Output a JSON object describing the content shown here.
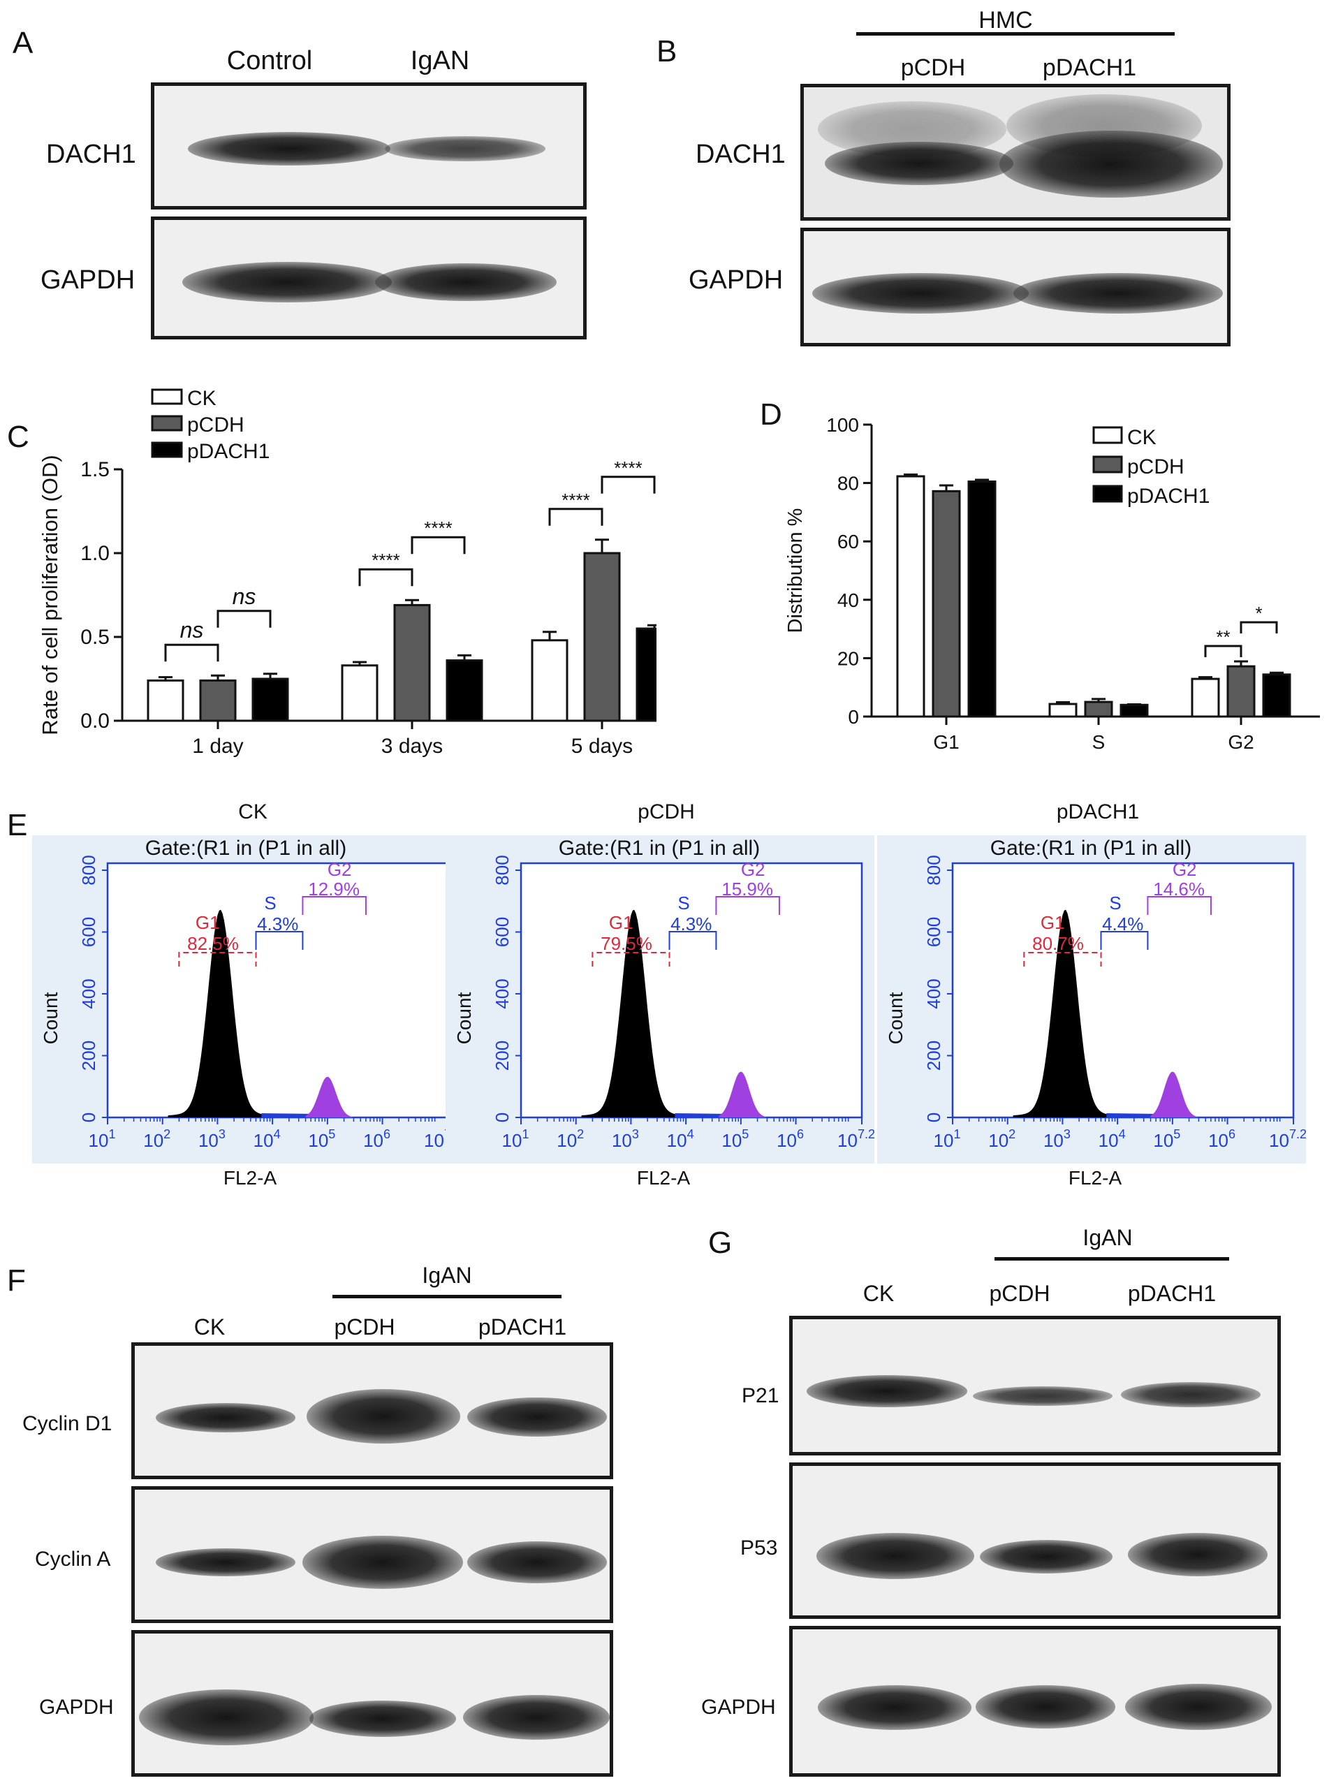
{
  "panels": {
    "A": "A",
    "B": "B",
    "C": "C",
    "D": "D",
    "E": "E",
    "F": "F",
    "G": "G"
  },
  "panel_a": {
    "lanes": [
      "Control",
      "IgAN"
    ],
    "rows": [
      "DACH1",
      "GAPDH"
    ]
  },
  "panel_b": {
    "group": "HMC",
    "lanes": [
      "pCDH",
      "pDACH1"
    ],
    "rows": [
      "DACH1",
      "GAPDH"
    ]
  },
  "panel_f": {
    "group": "IgAN",
    "lanes": [
      "CK",
      "pCDH",
      "pDACH1"
    ],
    "rows": [
      "Cyclin D1",
      "Cyclin A",
      "GAPDH"
    ]
  },
  "panel_g": {
    "group": "IgAN",
    "lanes": [
      "CK",
      "pCDH",
      "pDACH1"
    ],
    "rows": [
      "P21",
      "P53",
      "GAPDH"
    ]
  },
  "flow": {
    "panels": [
      {
        "title": "CK",
        "gate": "Gate:(R1 in (P1 in all)",
        "g1": "82.5%",
        "s": "4.3%",
        "g2": "12.9%"
      },
      {
        "title": "pCDH",
        "gate": "Gate:(R1 in (P1 in all)",
        "g1": "79.5%",
        "s": "4.3%",
        "g2": "15.9%"
      },
      {
        "title": "pDACH1",
        "gate": "Gate:(R1 in (P1 in all)",
        "g1": "80.7%",
        "s": "4.4%",
        "g2": "14.6%"
      }
    ],
    "gate_names": {
      "g1": "G1",
      "s": "S",
      "g2": "G2"
    },
    "xlabel": "FL2-A",
    "ylabel": "Count",
    "yticks": [
      "0",
      "200",
      "400",
      "600",
      "800"
    ],
    "xticks": [
      "1",
      "2",
      "3",
      "4",
      "5",
      "6",
      "7.2"
    ],
    "xtick_base": "10",
    "colors": {
      "axis": "#1f3fd8",
      "g1": "#e0283a",
      "s": "#1f3fd8",
      "g2": "#a040e0",
      "frame": "#e6eef8"
    }
  },
  "chart_data": [
    {
      "type": "bar",
      "categories": [
        "1 day",
        "3 days",
        "5 days"
      ],
      "series": [
        {
          "name": "CK",
          "values": [
            0.24,
            0.33,
            0.48
          ],
          "errors": [
            0.02,
            0.02,
            0.05
          ]
        },
        {
          "name": "pCDH",
          "values": [
            0.24,
            0.69,
            1.0
          ],
          "errors": [
            0.03,
            0.03,
            0.08
          ]
        },
        {
          "name": "pDACH1",
          "values": [
            0.25,
            0.36,
            0.55
          ],
          "errors": [
            0.03,
            0.03,
            0.02
          ]
        }
      ],
      "xlabel": "",
      "ylabel": "Rate of cell proliferation (OD)",
      "ylim": [
        0,
        1.5
      ],
      "yticks": [
        "0.0",
        "0.5",
        "1.0",
        "1.5"
      ],
      "legend": "top-left",
      "annotations": [
        {
          "group": 0,
          "from": 0,
          "to": 1,
          "text": "ns"
        },
        {
          "group": 0,
          "from": 1,
          "to": 2,
          "text": "ns"
        },
        {
          "group": 1,
          "from": 0,
          "to": 1,
          "text": "****"
        },
        {
          "group": 1,
          "from": 1,
          "to": 2,
          "text": "****"
        },
        {
          "group": 2,
          "from": 0,
          "to": 1,
          "text": "****"
        },
        {
          "group": 2,
          "from": 1,
          "to": 2,
          "text": "****"
        }
      ],
      "colors": [
        "#ffffff",
        "#5a5a5a",
        "#000000"
      ]
    },
    {
      "type": "bar",
      "categories": [
        "G1",
        "S",
        "G2"
      ],
      "series": [
        {
          "name": "CK",
          "values": [
            82.3,
            4.3,
            12.9
          ],
          "errors": [
            0.6,
            0.6,
            0.6
          ]
        },
        {
          "name": "pCDH",
          "values": [
            77.2,
            5.0,
            17.2
          ],
          "errors": [
            2.0,
            1.0,
            1.7
          ]
        },
        {
          "name": "pDACH1",
          "values": [
            80.5,
            4.0,
            14.4
          ],
          "errors": [
            0.6,
            0.2,
            0.6
          ]
        }
      ],
      "xlabel": "",
      "ylabel": "Distribution %",
      "ylim": [
        0,
        100
      ],
      "yticks": [
        "0",
        "20",
        "40",
        "60",
        "80",
        "100"
      ],
      "legend": "top-right",
      "annotations": [
        {
          "group": 2,
          "from": 0,
          "to": 1,
          "text": "**"
        },
        {
          "group": 2,
          "from": 1,
          "to": 2,
          "text": "*"
        }
      ],
      "colors": [
        "#ffffff",
        "#5a5a5a",
        "#000000"
      ]
    }
  ]
}
